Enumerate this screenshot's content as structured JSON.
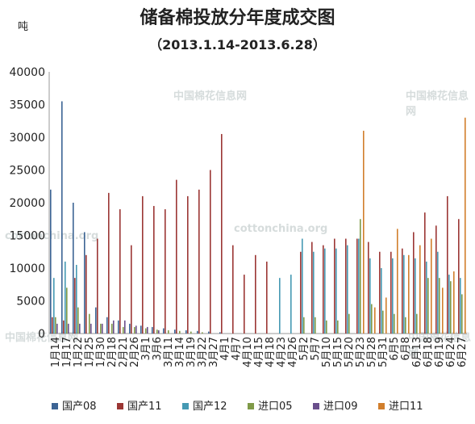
{
  "chart_data": {
    "type": "bar",
    "title": "储备棉投放分年度成交图",
    "subtitle": "（2013.1.14-2013.6.28）",
    "ylabel": "吨",
    "ylim": [
      0,
      40000
    ],
    "yticks": [
      0,
      5000,
      10000,
      15000,
      20000,
      25000,
      30000,
      35000,
      40000
    ],
    "grid": false,
    "legend_position": "bottom",
    "watermarks": [
      "中国棉花信息网",
      "中国棉花信息网",
      "cottonchina.org",
      "cottonchina.org",
      "中国棉花信息网",
      "中国棉花信息网"
    ],
    "categories": [
      "1月14",
      "1月17",
      "1月22",
      "1月25",
      "1月30",
      "2月18",
      "2月21",
      "2月26",
      "3月1",
      "3月6",
      "3月11",
      "3月14",
      "3月19",
      "3月22",
      "3月27",
      "4月1",
      "4月7",
      "4月10",
      "4月15",
      "4月18",
      "4月23",
      "4月26",
      "5月2",
      "5月7",
      "5月10",
      "5月15",
      "5月20",
      "5月23",
      "5月28",
      "5月31",
      "6月5",
      "6月8",
      "6月13",
      "6月18",
      "6月19",
      "6月24",
      "6月27"
    ],
    "series": [
      {
        "name": "国产08",
        "color": "#3c6494",
        "values": [
          22000,
          35500,
          20000,
          15500,
          4000,
          2500,
          2000,
          1500,
          1200,
          1000,
          800,
          600,
          500,
          400,
          300,
          200,
          0,
          0,
          0,
          0,
          0,
          0,
          0,
          0,
          0,
          0,
          0,
          0,
          0,
          0,
          0,
          0,
          0,
          0,
          0,
          0,
          0
        ]
      },
      {
        "name": "国产11",
        "color": "#9b3634",
        "values": [
          2500,
          2000,
          8500,
          12000,
          14500,
          21500,
          19000,
          13500,
          21000,
          19500,
          19000,
          23500,
          21000,
          22000,
          25000,
          30500,
          13500,
          9000,
          12000,
          11000,
          0,
          0,
          12500,
          14000,
          13500,
          14500,
          14500,
          14500,
          14000,
          12500,
          12500,
          13000,
          15500,
          18500,
          16500,
          21000,
          17500
        ]
      },
      {
        "name": "国产12",
        "color": "#4599b3",
        "values": [
          8500,
          11000,
          10500,
          0,
          0,
          0,
          0,
          0,
          0,
          0,
          0,
          0,
          0,
          0,
          0,
          0,
          0,
          0,
          0,
          0,
          8500,
          9000,
          14500,
          12500,
          13000,
          13000,
          13500,
          14500,
          11500,
          10000,
          11500,
          12000,
          11500,
          11000,
          12500,
          9000,
          8500
        ]
      },
      {
        "name": "进口05",
        "color": "#7f9a48",
        "values": [
          2500,
          7000,
          4000,
          3000,
          1500,
          1500,
          1000,
          1000,
          800,
          600,
          500,
          400,
          300,
          200,
          0,
          0,
          0,
          0,
          0,
          0,
          0,
          0,
          2500,
          2500,
          2000,
          2000,
          3000,
          17500,
          4500,
          3500,
          3000,
          2500,
          3000,
          8500,
          8500,
          8000,
          6000
        ]
      },
      {
        "name": "进口09",
        "color": "#6a4f8c",
        "values": [
          1500,
          1500,
          1500,
          1500,
          1500,
          2000,
          2000,
          1200,
          1000,
          500,
          0,
          0,
          0,
          0,
          0,
          0,
          0,
          0,
          0,
          0,
          0,
          0,
          0,
          0,
          0,
          0,
          0,
          0,
          0,
          0,
          0,
          0,
          0,
          0,
          0,
          0,
          0
        ]
      },
      {
        "name": "进口11",
        "color": "#d17e2c",
        "values": [
          0,
          0,
          0,
          0,
          0,
          0,
          0,
          0,
          0,
          0,
          0,
          0,
          0,
          0,
          0,
          0,
          0,
          0,
          0,
          0,
          0,
          0,
          0,
          0,
          0,
          0,
          0,
          31000,
          4000,
          5500,
          16000,
          12000,
          13500,
          14500,
          7000,
          9500,
          33000
        ]
      }
    ]
  }
}
